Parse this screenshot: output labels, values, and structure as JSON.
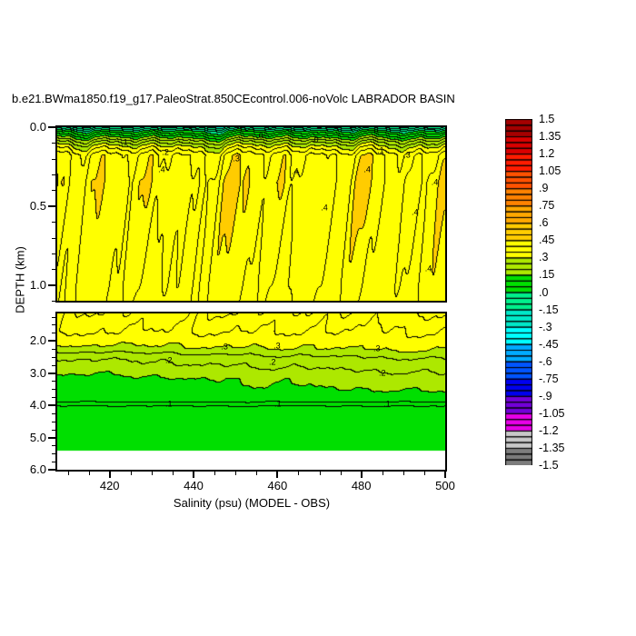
{
  "chart_data": {
    "type": "heatmap",
    "subtype": "filled-contour-section",
    "title": "b.e21.BWma1850.f19_g17.PaleoStrat.850CEcontrol.006-noVolc LABRADOR BASIN",
    "xlabel": "Salinity (psu) (MODEL - OBS)",
    "ylabel": "DEPTH (km)",
    "xlim": [
      407.5,
      500
    ],
    "x_ticks": [
      420,
      440,
      460,
      480,
      500
    ],
    "x_minor_step": 5,
    "panels": [
      {
        "ylim": [
          0.0,
          1.1
        ],
        "y_ticks": [
          "0.0",
          "0.5",
          "1.0"
        ],
        "y_tick_vals": [
          0.0,
          0.5,
          1.0
        ],
        "y_minor_step": 0.1
      },
      {
        "ylim": [
          1.15,
          6.0
        ],
        "y_ticks": [
          "2.0",
          "3.0",
          "4.0",
          "5.0",
          "6.0"
        ],
        "y_tick_vals": [
          2.0,
          3.0,
          4.0,
          5.0,
          6.0
        ],
        "y_minor_step": 0.25
      }
    ],
    "value_range": [
      -1.5,
      1.5
    ],
    "contour_interval": 0.05,
    "fill_interval": 0.15,
    "seafloor_km": 5.4,
    "colorbar_labels": [
      "1.5",
      "1.35",
      "1.2",
      "1.05",
      ".9",
      ".75",
      ".6",
      ".45",
      ".3",
      ".15",
      ".0",
      "-.15",
      "-.3",
      "-.45",
      "-.6",
      "-.75",
      "-.9",
      "-1.05",
      "-1.2",
      "-1.35",
      "-1.5"
    ],
    "fill_colors_top_down": [
      "#A50000",
      "#D90000",
      "#FF1C00",
      "#FF5200",
      "#FF8200",
      "#FFA800",
      "#FFCC00",
      "#FFFF00",
      "#ADE800",
      "#00DF00",
      "#00F08C",
      "#00E8C8",
      "#00FFFF",
      "#00AAFF",
      "#0055FF",
      "#0000F0",
      "#7300D9",
      "#E800E8",
      "#C9C9C9",
      "#7D7D7D"
    ],
    "profile_depth_value": [
      [
        0.0,
        -0.12
      ],
      [
        0.03,
        0.02
      ],
      [
        0.06,
        0.12
      ],
      [
        0.09,
        0.22
      ],
      [
        0.13,
        0.32
      ],
      [
        0.18,
        0.405
      ],
      [
        0.35,
        0.425
      ],
      [
        0.7,
        0.41
      ],
      [
        1.0,
        0.4
      ],
      [
        1.3,
        0.375
      ],
      [
        1.7,
        0.35
      ],
      [
        2.0,
        0.325
      ],
      [
        2.25,
        0.295
      ],
      [
        2.45,
        0.25
      ],
      [
        2.6,
        0.22
      ],
      [
        2.85,
        0.195
      ],
      [
        3.2,
        0.155
      ],
      [
        3.6,
        0.135
      ],
      [
        3.85,
        0.125
      ],
      [
        4.05,
        0.045
      ],
      [
        5.4,
        0.03
      ]
    ],
    "noise_amp": [
      [
        0.0,
        0.06
      ],
      [
        0.15,
        0.065
      ],
      [
        0.5,
        0.055
      ],
      [
        1.0,
        0.045
      ],
      [
        1.3,
        0.03
      ],
      [
        1.8,
        0.018
      ],
      [
        2.4,
        0.012
      ],
      [
        3.2,
        0.01
      ],
      [
        3.9,
        0.007
      ],
      [
        4.1,
        0.004
      ],
      [
        6.0,
        0.003
      ]
    ],
    "tilt": [
      [
        0.0,
        0.0
      ],
      [
        2.0,
        0.0
      ],
      [
        2.4,
        0.05
      ],
      [
        3.4,
        0.05
      ],
      [
        3.8,
        0.0
      ],
      [
        6.0,
        0.0
      ]
    ],
    "contour_labels": [
      {
        "x": 423.5,
        "d": 0.1,
        "t": ".1"
      },
      {
        "x": 433.3,
        "d": 0.16,
        "t": ".2"
      },
      {
        "x": 450.2,
        "d": 0.2,
        "t": ".3"
      },
      {
        "x": 455.8,
        "d": 0.06,
        "t": ".0"
      },
      {
        "x": 469.0,
        "d": 0.08,
        "t": ".0"
      },
      {
        "x": 484.6,
        "d": 0.15,
        "t": ".1"
      },
      {
        "x": 490.9,
        "d": 0.18,
        "t": ".3"
      },
      {
        "x": 432.4,
        "d": 0.27,
        "t": ".4"
      },
      {
        "x": 464.2,
        "d": 0.28,
        "t": ".4"
      },
      {
        "x": 481.4,
        "d": 0.27,
        "t": ".4"
      },
      {
        "x": 497.5,
        "d": 0.35,
        "t": ".4"
      },
      {
        "x": 471.2,
        "d": 0.51,
        "t": ".4"
      },
      {
        "x": 492.8,
        "d": 0.54,
        "t": ".4"
      },
      {
        "x": 496.0,
        "d": 0.9,
        "t": ".4"
      },
      {
        "x": 447.4,
        "d": 2.18,
        "t": ".3"
      },
      {
        "x": 459.9,
        "d": 2.16,
        "t": ".3"
      },
      {
        "x": 483.7,
        "d": 2.25,
        "t": ".3"
      },
      {
        "x": 434.1,
        "d": 2.62,
        "t": ".2"
      },
      {
        "x": 458.8,
        "d": 2.68,
        "t": ".2"
      },
      {
        "x": 485.0,
        "d": 3.0,
        "t": ".2"
      },
      {
        "x": 434.1,
        "d": 3.97,
        "t": ".1"
      },
      {
        "x": 460.1,
        "d": 3.97,
        "t": ".1"
      },
      {
        "x": 486.1,
        "d": 3.97,
        "t": ".1"
      }
    ]
  }
}
